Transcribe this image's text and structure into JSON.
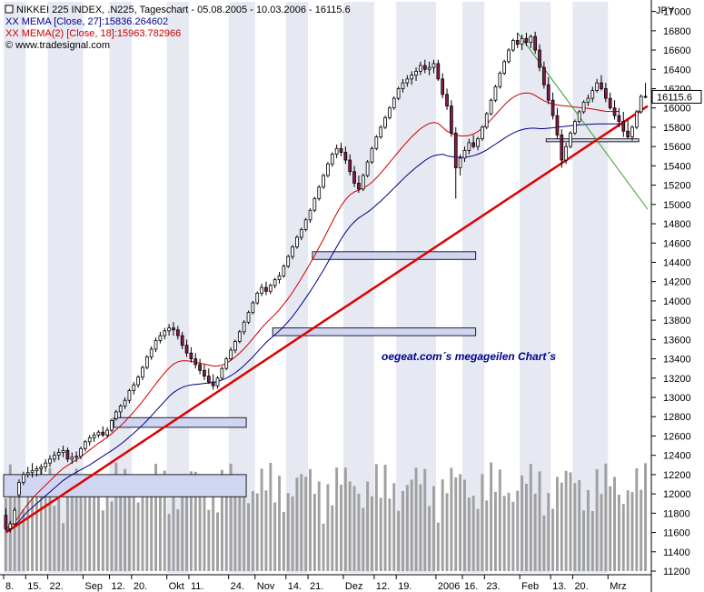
{
  "chart_data": {
    "type": "candlestick",
    "legend": [
      {
        "text": "NIKKEI 225 INDEX, .N225, Tageschart - 05.08.2005 - 10.03.2006 - 16115.6",
        "color": "#000000",
        "marker": "square"
      },
      {
        "text": "XX MEMA [Close, 27]:15836.264602",
        "color": "#00008b",
        "marker": ""
      },
      {
        "text": "XX MEMA(2) [Close, 18]:15963.782966",
        "color": "#cc0000",
        "marker": ""
      },
      {
        "text": "© www.tradesignal.com",
        "color": "#000000",
        "marker": ""
      }
    ],
    "y_unit": "JPY",
    "ylim": [
      11200,
      17100
    ],
    "y_ticks": [
      11200,
      11400,
      11600,
      11800,
      12000,
      12200,
      12400,
      12600,
      12800,
      13000,
      13200,
      13400,
      13600,
      13800,
      14000,
      14200,
      14400,
      14600,
      14800,
      15000,
      15200,
      15400,
      15600,
      15800,
      16000,
      16200,
      16400,
      16600,
      16800,
      17000
    ],
    "last_value_label": "16115.6",
    "x_ticks": [
      {
        "label": "8.",
        "i": 0
      },
      {
        "label": "15.",
        "i": 5
      },
      {
        "label": "22.",
        "i": 10
      },
      {
        "label": "Sep",
        "i": 18
      },
      {
        "label": "12.",
        "i": 24
      },
      {
        "label": "20.",
        "i": 29
      },
      {
        "label": "Okt",
        "i": 37
      },
      {
        "label": "11.",
        "i": 42
      },
      {
        "label": "24.",
        "i": 51
      },
      {
        "label": "Nov",
        "i": 57
      },
      {
        "label": "14.",
        "i": 64
      },
      {
        "label": "21.",
        "i": 69
      },
      {
        "label": "Dez",
        "i": 77
      },
      {
        "label": "12.",
        "i": 84
      },
      {
        "label": "19.",
        "i": 89
      },
      {
        "label": "2006",
        "i": 98
      },
      {
        "label": "16.",
        "i": 104
      },
      {
        "label": "23.",
        "i": 109
      },
      {
        "label": "Feb",
        "i": 117
      },
      {
        "label": "13.",
        "i": 124
      },
      {
        "label": "20.",
        "i": 129
      },
      {
        "label": "Mrz",
        "i": 137
      }
    ],
    "ohlc": [
      [
        11778,
        11850,
        11620,
        11640
      ],
      [
        11640,
        11720,
        11600,
        11690
      ],
      [
        11690,
        11860,
        11680,
        11830
      ],
      [
        11990,
        12150,
        11960,
        12120
      ],
      [
        12120,
        12230,
        12090,
        12200
      ],
      [
        12200,
        12280,
        12170,
        12220
      ],
      [
        12220,
        12320,
        12170,
        12240
      ],
      [
        12240,
        12290,
        12180,
        12260
      ],
      [
        12260,
        12310,
        12200,
        12280
      ],
      [
        12280,
        12360,
        12230,
        12320
      ],
      [
        12320,
        12400,
        12280,
        12360
      ],
      [
        12360,
        12440,
        12330,
        12400
      ],
      [
        12400,
        12470,
        12350,
        12430
      ],
      [
        12430,
        12500,
        12380,
        12450
      ],
      [
        12450,
        12480,
        12330,
        12360
      ],
      [
        12360,
        12430,
        12310,
        12380
      ],
      [
        12380,
        12440,
        12330,
        12390
      ],
      [
        12390,
        12490,
        12360,
        12470
      ],
      [
        12470,
        12560,
        12440,
        12540
      ],
      [
        12540,
        12610,
        12500,
        12580
      ],
      [
        12580,
        12640,
        12540,
        12610
      ],
      [
        12610,
        12660,
        12580,
        12640
      ],
      [
        12640,
        12700,
        12590,
        12610
      ],
      [
        12610,
        12690,
        12580,
        12660
      ],
      [
        12660,
        12780,
        12640,
        12760
      ],
      [
        12780,
        12870,
        12760,
        12850
      ],
      [
        12850,
        12930,
        12790,
        12910
      ],
      [
        12910,
        13000,
        12880,
        12970
      ],
      [
        12970,
        13090,
        12940,
        13070
      ],
      [
        13070,
        13160,
        13030,
        13130
      ],
      [
        13130,
        13230,
        13100,
        13210
      ],
      [
        13210,
        13330,
        13180,
        13310
      ],
      [
        13310,
        13440,
        13290,
        13420
      ],
      [
        13420,
        13530,
        13390,
        13500
      ],
      [
        13500,
        13620,
        13470,
        13590
      ],
      [
        13590,
        13680,
        13560,
        13640
      ],
      [
        13640,
        13720,
        13600,
        13690
      ],
      [
        13690,
        13760,
        13640,
        13720
      ],
      [
        13720,
        13780,
        13640,
        13700
      ],
      [
        13700,
        13740,
        13600,
        13640
      ],
      [
        13640,
        13680,
        13500,
        13540
      ],
      [
        13540,
        13600,
        13420,
        13460
      ],
      [
        13460,
        13520,
        13360,
        13400
      ],
      [
        13400,
        13460,
        13300,
        13340
      ],
      [
        13340,
        13400,
        13240,
        13280
      ],
      [
        13280,
        13340,
        13180,
        13220
      ],
      [
        13220,
        13300,
        13140,
        13160
      ],
      [
        13160,
        13240,
        13080,
        13120
      ],
      [
        13120,
        13220,
        13090,
        13200
      ],
      [
        13200,
        13320,
        13180,
        13300
      ],
      [
        13300,
        13420,
        13280,
        13400
      ],
      [
        13400,
        13520,
        13380,
        13490
      ],
      [
        13490,
        13600,
        13460,
        13580
      ],
      [
        13580,
        13700,
        13560,
        13680
      ],
      [
        13680,
        13800,
        13650,
        13780
      ],
      [
        13780,
        13900,
        13760,
        13880
      ],
      [
        13880,
        14000,
        13860,
        13980
      ],
      [
        13980,
        14100,
        13960,
        14080
      ],
      [
        14080,
        14180,
        14050,
        14140
      ],
      [
        14140,
        14200,
        14060,
        14100
      ],
      [
        14100,
        14180,
        14070,
        14160
      ],
      [
        14160,
        14240,
        14130,
        14220
      ],
      [
        14220,
        14300,
        14180,
        14260
      ],
      [
        14260,
        14380,
        14240,
        14360
      ],
      [
        14360,
        14480,
        14340,
        14460
      ],
      [
        14460,
        14580,
        14430,
        14560
      ],
      [
        14560,
        14680,
        14540,
        14660
      ],
      [
        14660,
        14760,
        14630,
        14740
      ],
      [
        14740,
        14860,
        14720,
        14840
      ],
      [
        14840,
        14960,
        14810,
        14940
      ],
      [
        14940,
        15080,
        14920,
        15060
      ],
      [
        15060,
        15200,
        15040,
        15180
      ],
      [
        15180,
        15320,
        15160,
        15300
      ],
      [
        15300,
        15440,
        15280,
        15420
      ],
      [
        15420,
        15540,
        15390,
        15520
      ],
      [
        15520,
        15620,
        15480,
        15580
      ],
      [
        15580,
        15640,
        15500,
        15540
      ],
      [
        15540,
        15600,
        15420,
        15460
      ],
      [
        15460,
        15520,
        15300,
        15340
      ],
      [
        15340,
        15400,
        15180,
        15220
      ],
      [
        15220,
        15300,
        15120,
        15160
      ],
      [
        15160,
        15320,
        15140,
        15300
      ],
      [
        15300,
        15460,
        15280,
        15440
      ],
      [
        15440,
        15600,
        15420,
        15580
      ],
      [
        15580,
        15720,
        15560,
        15700
      ],
      [
        15700,
        15820,
        15680,
        15800
      ],
      [
        15800,
        15920,
        15780,
        15900
      ],
      [
        15900,
        16020,
        15880,
        16000
      ],
      [
        16000,
        16120,
        15980,
        16100
      ],
      [
        16100,
        16220,
        16080,
        16200
      ],
      [
        16200,
        16300,
        16160,
        16260
      ],
      [
        16260,
        16340,
        16220,
        16300
      ],
      [
        16300,
        16380,
        16240,
        16340
      ],
      [
        16340,
        16420,
        16280,
        16380
      ],
      [
        16380,
        16480,
        16340,
        16440
      ],
      [
        16440,
        16500,
        16360,
        16400
      ],
      [
        16400,
        16480,
        16340,
        16420
      ],
      [
        16420,
        16500,
        16360,
        16460
      ],
      [
        16460,
        16500,
        16280,
        16300
      ],
      [
        16300,
        16360,
        16100,
        16140
      ],
      [
        16140,
        16200,
        15980,
        16020
      ],
      [
        16020,
        16080,
        15700,
        15740
      ],
      [
        15740,
        15800,
        15060,
        15380
      ],
      [
        15380,
        15520,
        15300,
        15480
      ],
      [
        15480,
        15600,
        15440,
        15560
      ],
      [
        15560,
        15680,
        15520,
        15640
      ],
      [
        15640,
        15720,
        15580,
        15600
      ],
      [
        15600,
        15700,
        15560,
        15680
      ],
      [
        15680,
        15820,
        15660,
        15800
      ],
      [
        15800,
        15960,
        15780,
        15940
      ],
      [
        15940,
        16100,
        15920,
        16080
      ],
      [
        16080,
        16240,
        16060,
        16220
      ],
      [
        16220,
        16380,
        16200,
        16360
      ],
      [
        16360,
        16500,
        16340,
        16480
      ],
      [
        16480,
        16620,
        16460,
        16600
      ],
      [
        16600,
        16720,
        16580,
        16700
      ],
      [
        16700,
        16780,
        16620,
        16660
      ],
      [
        16660,
        16760,
        16600,
        16720
      ],
      [
        16720,
        16780,
        16640,
        16680
      ],
      [
        16680,
        16760,
        16620,
        16740
      ],
      [
        16740,
        16790,
        16560,
        16600
      ],
      [
        16600,
        16660,
        16380,
        16420
      ],
      [
        16420,
        16480,
        16200,
        16240
      ],
      [
        16240,
        16320,
        16040,
        16080
      ],
      [
        16080,
        16160,
        15880,
        15920
      ],
      [
        15920,
        16000,
        15680,
        15720
      ],
      [
        15720,
        15780,
        15380,
        15460
      ],
      [
        15460,
        15640,
        15420,
        15600
      ],
      [
        15600,
        15760,
        15580,
        15740
      ],
      [
        15740,
        15880,
        15720,
        15860
      ],
      [
        15860,
        15980,
        15840,
        15960
      ],
      [
        15960,
        16080,
        15940,
        16060
      ],
      [
        16060,
        16140,
        16020,
        16100
      ],
      [
        16100,
        16220,
        16060,
        16180
      ],
      [
        16180,
        16300,
        16160,
        16260
      ],
      [
        16260,
        16340,
        16180,
        16200
      ],
      [
        16200,
        16260,
        16060,
        16100
      ],
      [
        16100,
        16160,
        15980,
        16000
      ],
      [
        16000,
        16080,
        15880,
        15920
      ],
      [
        15920,
        16000,
        15800,
        15860
      ],
      [
        15860,
        15960,
        15700,
        15760
      ],
      [
        15760,
        15880,
        15680,
        15700
      ],
      [
        15700,
        15820,
        15660,
        15800
      ],
      [
        15800,
        15980,
        15780,
        15960
      ],
      [
        15960,
        16140,
        15940,
        16120
      ],
      [
        16120,
        16260,
        16100,
        16115.6
      ]
    ],
    "mema_27": [
      11620,
      11640,
      11670,
      11720,
      11770,
      11820,
      11860,
      11900,
      11940,
      11980,
      12020,
      12060,
      12100,
      12140,
      12170,
      12200,
      12225,
      12250,
      12275,
      12300,
      12330,
      12360,
      12390,
      12420,
      12450,
      12480,
      12515,
      12550,
      12590,
      12630,
      12670,
      12715,
      12760,
      12810,
      12860,
      12910,
      12960,
      13010,
      13050,
      13080,
      13105,
      13120,
      13130,
      13135,
      13140,
      13145,
      13150,
      13155,
      13165,
      13180,
      13200,
      13225,
      13255,
      13290,
      13330,
      13375,
      13420,
      13470,
      13520,
      13570,
      13610,
      13650,
      13690,
      13735,
      13785,
      13840,
      13900,
      13965,
      14030,
      14100,
      14170,
      14245,
      14320,
      14400,
      14480,
      14560,
      14640,
      14710,
      14770,
      14820,
      14860,
      14890,
      14920,
      14955,
      14995,
      15035,
      15080,
      15125,
      15170,
      15215,
      15260,
      15305,
      15345,
      15385,
      15420,
      15455,
      15485,
      15505,
      15515,
      15520,
      15505,
      15495,
      15490,
      15488,
      15490,
      15495,
      15505,
      15520,
      15540,
      15565,
      15595,
      15625,
      15655,
      15685,
      15715,
      15740,
      15760,
      15775,
      15785,
      15790,
      15790,
      15785,
      15785,
      15790,
      15795,
      15800,
      15805,
      15810,
      15815,
      15820,
      15825,
      15828,
      15830,
      15832,
      15834,
      15835,
      15834,
      15834,
      15835,
      15836
    ],
    "mema_18": [
      11640,
      11665,
      11705,
      11770,
      11835,
      11895,
      11950,
      12000,
      12045,
      12090,
      12135,
      12180,
      12225,
      12265,
      12295,
      12325,
      12355,
      12385,
      12420,
      12455,
      12490,
      12525,
      12555,
      12590,
      12625,
      12665,
      12705,
      12750,
      12800,
      12850,
      12905,
      12960,
      13020,
      13080,
      13140,
      13200,
      13255,
      13305,
      13345,
      13370,
      13380,
      13380,
      13375,
      13365,
      13355,
      13345,
      13335,
      13325,
      13325,
      13335,
      13355,
      13385,
      13420,
      13460,
      13505,
      13555,
      13610,
      13665,
      13720,
      13770,
      13815,
      13860,
      13910,
      13965,
      14025,
      14090,
      14160,
      14235,
      14310,
      14390,
      14470,
      14555,
      14640,
      14730,
      14820,
      14905,
      14985,
      15050,
      15100,
      15130,
      15150,
      15170,
      15195,
      15230,
      15275,
      15325,
      15380,
      15435,
      15490,
      15545,
      15600,
      15650,
      15700,
      15745,
      15785,
      15815,
      15840,
      15850,
      15840,
      15800,
      15760,
      15735,
      15720,
      15710,
      15710,
      15715,
      15730,
      15755,
      15790,
      15830,
      15880,
      15930,
      15980,
      16030,
      16075,
      16110,
      16135,
      16150,
      16155,
      16150,
      16130,
      16100,
      16075,
      16055,
      16040,
      16030,
      16025,
      16020,
      16015,
      16010,
      16005,
      16000,
      15995,
      15988,
      15980,
      15972,
      15965,
      15963,
      15963,
      15964
    ]
  },
  "annotation": {
    "text": "oegeat.com´s megageilen Chart´s"
  },
  "colors": {
    "background": "#ffffff",
    "alt_band": "#e6e8f2",
    "up_candle": "#ffffff",
    "down_candle": "#8b1a4a",
    "candle_outline": "#000000",
    "mema_27": "#00008b",
    "mema_18": "#cc0000",
    "trendline": "#e00000",
    "downtrend": "#3a9a2a",
    "volume": "#a0a0a0",
    "rect_fill": "#d0d6f2",
    "rect_stroke": "#202020"
  }
}
